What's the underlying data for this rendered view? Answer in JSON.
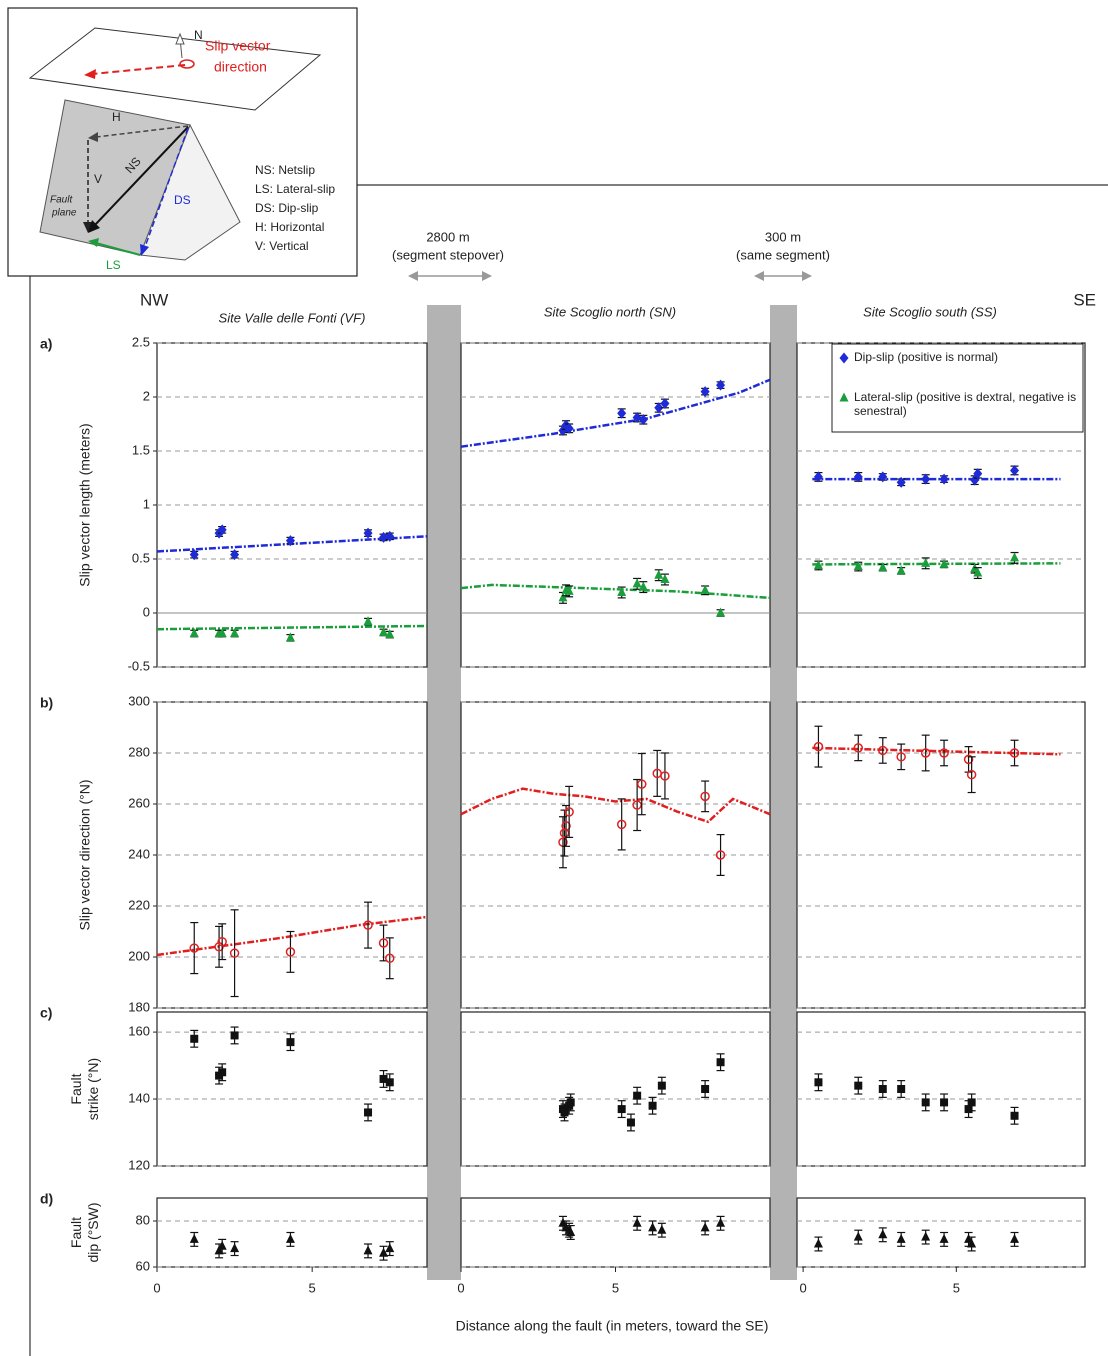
{
  "inset": {
    "slip_vector": [
      "Slip vector",
      "direction"
    ],
    "north": "N",
    "h": "H",
    "v": "V",
    "ns": "NS",
    "ds": "DS",
    "ls": "LS",
    "fault_plane": [
      "Fault",
      "plane"
    ],
    "legend": [
      "NS: Netslip",
      "LS: Lateral-slip",
      "DS: Dip-slip",
      "H: Horizontal",
      "V: Vertical"
    ]
  },
  "stepovers": [
    {
      "distance": "2800 m",
      "note": "(segment stepover)"
    },
    {
      "distance": "300 m",
      "note": "(same segment)"
    }
  ],
  "directions": {
    "left": "NW",
    "right": "SE"
  },
  "sites": [
    "Site Valle delle Fonti (VF)",
    "Site Scoglio north (SN)",
    "Site Scoglio south (SS)"
  ],
  "x_axis": {
    "label": "Distance along the fault (in meters, toward the SE)",
    "segments": [
      {
        "xlim": [
          0,
          8.7
        ],
        "xticks": [
          0,
          5
        ]
      },
      {
        "xlim": [
          0,
          10
        ],
        "xticks": [
          0,
          5
        ]
      },
      {
        "xlim": [
          -0.2,
          9.2
        ],
        "xticks": [
          0,
          5
        ]
      }
    ]
  },
  "chart_data": [
    {
      "type": "scatter",
      "label": "a)",
      "ylabel": [
        "Slip vector length (meters)"
      ],
      "ylim": [
        -0.5,
        2.5
      ],
      "yticks": [
        -0.5,
        0,
        0.5,
        1,
        1.5,
        2,
        2.5
      ],
      "grid": true,
      "legend": "top-right",
      "series": [
        {
          "name": "Dip-slip (positive is normal)",
          "color": "#1f2bd6",
          "marker": "diamond",
          "sites": [
            {
              "x": [
                1.2,
                2.0,
                2.1,
                2.5,
                4.3,
                6.8,
                7.3,
                7.5
              ],
              "values": [
                0.54,
                0.74,
                0.77,
                0.54,
                0.67,
                0.74,
                0.7,
                0.71
              ],
              "errors": [
                0.03,
                0.03,
                0.03,
                0.03,
                0.03,
                0.03,
                0.03,
                0.03
              ],
              "trend": {
                "x": [
                  0,
                  8.7
                ],
                "values": [
                  0.57,
                  0.71
                ]
              }
            },
            {
              "x": [
                3.3,
                3.4,
                3.5,
                5.2,
                5.7,
                5.9,
                6.4,
                6.6,
                7.9,
                8.4
              ],
              "values": [
                1.69,
                1.74,
                1.71,
                1.85,
                1.81,
                1.79,
                1.9,
                1.94,
                2.05,
                2.11
              ],
              "errors": [
                0.04,
                0.04,
                0.04,
                0.04,
                0.04,
                0.04,
                0.04,
                0.04,
                0.03,
                0.03
              ],
              "trend": {
                "x": [
                  0,
                  3,
                  6,
                  9,
                  10
                ],
                "values": [
                  1.54,
                  1.66,
                  1.8,
                  2.04,
                  2.16
                ]
              }
            },
            {
              "x": [
                0.5,
                1.8,
                2.6,
                3.2,
                4.0,
                4.6,
                5.6,
                5.7,
                6.9
              ],
              "values": [
                1.26,
                1.26,
                1.26,
                1.21,
                1.24,
                1.24,
                1.23,
                1.29,
                1.32
              ],
              "errors": [
                0.04,
                0.04,
                0.03,
                0.03,
                0.04,
                0.03,
                0.04,
                0.04,
                0.04
              ],
              "trend": {
                "x": [
                  0.3,
                  8.4
                ],
                "values": [
                  1.24,
                  1.24
                ]
              }
            }
          ]
        },
        {
          "name": "Lateral-slip (positive is dextral, negative is senestral)",
          "color": "#1a9e3c",
          "marker": "triangle",
          "sites": [
            {
              "x": [
                1.2,
                2.0,
                2.1,
                2.5,
                4.3,
                6.8,
                7.3,
                7.5
              ],
              "values": [
                -0.19,
                -0.19,
                -0.19,
                -0.19,
                -0.23,
                -0.08,
                -0.18,
                -0.2
              ],
              "errors": [
                0.03,
                0.03,
                0.03,
                0.03,
                0.03,
                0.03,
                0.03,
                0.03
              ],
              "trend": {
                "x": [
                  0,
                  8.7
                ],
                "values": [
                  -0.15,
                  -0.12
                ]
              }
            },
            {
              "x": [
                3.3,
                3.4,
                3.5,
                5.2,
                5.7,
                5.9,
                6.4,
                6.6,
                7.9,
                8.4
              ],
              "values": [
                0.14,
                0.21,
                0.2,
                0.19,
                0.27,
                0.24,
                0.35,
                0.31,
                0.21,
                0.0
              ],
              "errors": [
                0.05,
                0.05,
                0.05,
                0.05,
                0.05,
                0.05,
                0.05,
                0.05,
                0.04,
                0.03
              ],
              "trend": {
                "x": [
                  0,
                  1,
                  3,
                  5,
                  7,
                  9,
                  10
                ],
                "values": [
                  0.23,
                  0.26,
                  0.24,
                  0.22,
                  0.2,
                  0.16,
                  0.14
                ]
              }
            },
            {
              "x": [
                0.5,
                1.8,
                2.6,
                3.2,
                4.0,
                4.6,
                5.6,
                5.7,
                6.9
              ],
              "values": [
                0.44,
                0.43,
                0.42,
                0.39,
                0.46,
                0.45,
                0.41,
                0.37,
                0.51
              ],
              "errors": [
                0.04,
                0.04,
                0.03,
                0.03,
                0.05,
                0.03,
                0.04,
                0.05,
                0.05
              ],
              "trend": {
                "x": [
                  0.3,
                  8.4
                ],
                "values": [
                  0.45,
                  0.46
                ]
              }
            }
          ]
        }
      ]
    },
    {
      "type": "scatter",
      "label": "b)",
      "ylabel": [
        "Slip vector direction (°N)"
      ],
      "ylim": [
        180,
        300
      ],
      "yticks": [
        180,
        200,
        220,
        240,
        260,
        280,
        300
      ],
      "grid": true,
      "series": [
        {
          "color": "#e02020",
          "marker": "circle",
          "sites": [
            {
              "x": [
                1.2,
                2.0,
                2.1,
                2.5,
                4.3,
                6.8,
                7.3,
                7.5
              ],
              "values": [
                203.5,
                204,
                206,
                201.5,
                202,
                212.5,
                205.5,
                199.5
              ],
              "errors": [
                10,
                8,
                7,
                17,
                8,
                9,
                7,
                8
              ],
              "trend": {
                "x": [
                  0,
                  4,
                  6.5,
                  8.7
                ],
                "values": [
                  200.8,
                  207.5,
                  212.5,
                  215.7
                ]
              }
            },
            {
              "x": [
                3.3,
                3.35,
                3.4,
                3.5,
                5.2,
                5.7,
                5.85,
                6.35,
                6.6,
                7.9,
                8.4
              ],
              "values": [
                245,
                248.6,
                251.4,
                256.9,
                252,
                259.6,
                267.8,
                272,
                271,
                263,
                240
              ],
              "errors": [
                10,
                9,
                8,
                10,
                10,
                10,
                12,
                9,
                9,
                6,
                8
              ],
              "trend": {
                "x": [
                  0,
                  1,
                  2,
                  3,
                  4,
                  5,
                  6,
                  7,
                  8,
                  8.8,
                  10
                ],
                "values": [
                  256,
                  262,
                  266,
                  264,
                  263,
                  261,
                  262,
                  257,
                  253,
                  262,
                  256
                ]
              }
            },
            {
              "x": [
                0.5,
                1.8,
                2.6,
                3.2,
                4.0,
                4.6,
                5.4,
                5.5,
                6.9
              ],
              "values": [
                282.5,
                282,
                281,
                278.5,
                280,
                280,
                277.5,
                271.5,
                280
              ],
              "errors": [
                8,
                5,
                5,
                5,
                7,
                5,
                5,
                7,
                5
              ],
              "trend": {
                "x": [
                  0.3,
                  8.4
                ],
                "values": [
                  282,
                  279.5
                ]
              }
            }
          ]
        }
      ]
    },
    {
      "type": "scatter",
      "label": "c)",
      "ylabel": [
        "Fault",
        "strike (°N)"
      ],
      "ylim": [
        120,
        166
      ],
      "yticks": [
        120,
        140,
        160
      ],
      "grid": true,
      "series": [
        {
          "color": "#111111",
          "marker": "square",
          "sites": [
            {
              "x": [
                1.2,
                2.0,
                2.1,
                2.5,
                4.3,
                6.8,
                7.3,
                7.5
              ],
              "values": [
                158,
                147,
                148,
                159,
                157,
                136,
                146,
                145
              ],
              "errors": [
                2.5,
                2.5,
                2.5,
                2.5,
                2.5,
                2.5,
                2.5,
                2.5
              ]
            },
            {
              "x": [
                3.3,
                3.35,
                3.5,
                3.55,
                5.2,
                5.5,
                5.7,
                6.2,
                6.5,
                7.9,
                8.4
              ],
              "values": [
                137,
                136,
                138,
                139,
                137,
                133,
                141,
                138,
                144,
                143,
                151
              ],
              "errors": [
                2.5,
                2.5,
                2.5,
                2.5,
                2.5,
                2.5,
                2.5,
                2.5,
                2.5,
                2.5,
                2.5
              ]
            },
            {
              "x": [
                0.5,
                1.8,
                2.6,
                3.2,
                4.0,
                4.6,
                5.4,
                5.5,
                6.9
              ],
              "values": [
                145,
                144,
                143,
                143,
                139,
                139,
                137,
                139,
                135
              ],
              "errors": [
                2.5,
                2.5,
                2.5,
                2.5,
                2.5,
                2.5,
                2.5,
                2.5,
                2.5
              ]
            }
          ]
        }
      ]
    },
    {
      "type": "scatter",
      "label": "d)",
      "ylabel": [
        "Fault",
        "dip (°SW)"
      ],
      "ylim": [
        60,
        90
      ],
      "yticks": [
        60,
        80
      ],
      "grid": true,
      "series": [
        {
          "color": "#111111",
          "marker": "triangle",
          "sites": [
            {
              "x": [
                1.2,
                2.0,
                2.1,
                2.5,
                4.3,
                6.8,
                7.3,
                7.5
              ],
              "values": [
                72,
                67,
                69,
                68,
                72,
                67,
                66,
                68
              ],
              "errors": [
                3,
                3,
                3,
                3,
                3,
                3,
                3,
                3
              ]
            },
            {
              "x": [
                3.3,
                3.4,
                3.5,
                3.55,
                5.7,
                6.2,
                6.5,
                7.9,
                8.4
              ],
              "values": [
                79,
                77,
                76,
                75,
                79,
                77,
                76,
                77,
                79
              ],
              "errors": [
                3,
                3,
                3,
                3,
                3,
                3,
                3,
                3,
                3
              ]
            },
            {
              "x": [
                0.5,
                1.8,
                2.6,
                3.2,
                4.0,
                4.6,
                5.4,
                5.5,
                6.9
              ],
              "values": [
                70,
                73,
                74,
                72,
                73,
                72,
                72,
                70,
                72
              ],
              "errors": [
                3,
                3,
                3,
                3,
                3,
                3,
                3,
                3,
                3
              ]
            }
          ]
        }
      ]
    }
  ]
}
